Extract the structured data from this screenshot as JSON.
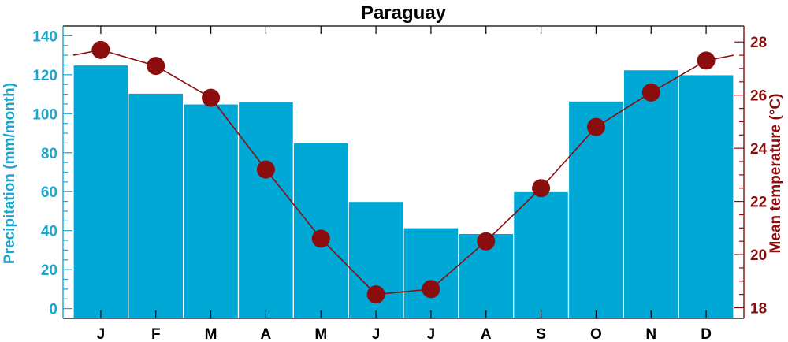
{
  "chart_data": {
    "type": "bar",
    "title": "Paraguay",
    "categories": [
      "J",
      "F",
      "M",
      "A",
      "M",
      "J",
      "J",
      "A",
      "S",
      "O",
      "N",
      "D"
    ],
    "series": [
      {
        "name": "Precipitation",
        "type": "bar",
        "axis": "left",
        "values": [
          125,
          110.5,
          105,
          106,
          85,
          55,
          41.5,
          38.5,
          60,
          106.5,
          122.5,
          120
        ]
      },
      {
        "name": "Mean temperature",
        "type": "line",
        "axis": "right",
        "values": [
          27.7,
          27.1,
          25.9,
          23.2,
          20.6,
          18.5,
          18.7,
          20.5,
          22.5,
          24.8,
          26.1,
          27.3
        ]
      }
    ],
    "ylabel": "Precipitation (mm/month)",
    "ylabel_right": "Mean temperature (°C)",
    "ylim": [
      -5,
      145
    ],
    "ylim_right": [
      17.6,
      28.6
    ],
    "yticks": [
      0,
      20,
      40,
      60,
      80,
      100,
      120,
      140
    ],
    "yticks_right": [
      18,
      20,
      22,
      24,
      26,
      28
    ],
    "colors": {
      "bar": "#00a8d6",
      "line": "#8b0d0d",
      "left_axis": "#1aa6d1",
      "right_axis": "#8b0d0d"
    },
    "grid": false
  }
}
